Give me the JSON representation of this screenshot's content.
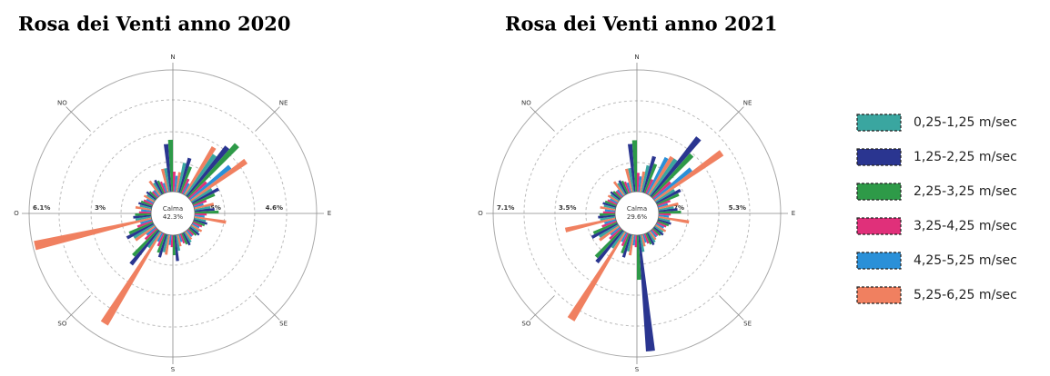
{
  "chart_data": [
    {
      "type": "windrose",
      "title": "Rosa dei Venti anno 2020",
      "categories": [
        "N",
        null,
        "NE",
        null,
        "E",
        null,
        "SE",
        null,
        "S",
        null,
        "SO",
        null,
        "O",
        null,
        "NO",
        null
      ],
      "calm": {
        "label": "Calma",
        "value": 42.3,
        "value_label": "42.3%"
      },
      "rlim": [
        0,
        6.1
      ],
      "rticks": [
        {
          "value": 1.5,
          "label": "1.5%"
        },
        {
          "value": 3,
          "label": "3%"
        },
        {
          "value": 4.6,
          "label": "4.6%"
        },
        {
          "value": 6.1,
          "label": "6.1%"
        }
      ],
      "series": [
        {
          "name": "0,25-1,25 m/sec",
          "color": "#3aa6a0",
          "values": [
            1.2,
            1.5,
            2.5,
            1.2,
            0.8,
            0.6,
            0.5,
            0.6,
            0.8,
            0.9,
            1.0,
            1.2,
            0.8,
            0.6,
            0.5,
            0.7
          ]
        },
        {
          "name": "1,25-2,25 m/sec",
          "color": "#2a3590",
          "values": [
            2.4,
            1.8,
            3.2,
            1.5,
            1.0,
            0.7,
            0.6,
            0.7,
            1.3,
            1.2,
            2.2,
            1.5,
            0.9,
            0.7,
            0.6,
            0.8
          ]
        },
        {
          "name": "2,25-3,25 m/sec",
          "color": "#2e9a48",
          "values": [
            2.6,
            1.4,
            3.6,
            1.2,
            1.2,
            0.6,
            0.5,
            0.6,
            1.0,
            1.0,
            1.8,
            1.3,
            0.8,
            0.6,
            0.5,
            0.7
          ]
        },
        {
          "name": "3,25-4,25 m/sec",
          "color": "#e0307a",
          "values": [
            1.0,
            0.8,
            1.2,
            0.7,
            0.6,
            0.5,
            0.4,
            0.5,
            0.6,
            0.7,
            0.8,
            0.8,
            0.6,
            0.5,
            0.4,
            0.6
          ]
        },
        {
          "name": "4,25-5,25 m/sec",
          "color": "#2a90d8",
          "values": [
            0.8,
            0.6,
            2.6,
            0.5,
            0.5,
            0.4,
            0.4,
            0.4,
            0.5,
            0.5,
            0.6,
            0.6,
            0.5,
            0.4,
            0.4,
            0.5
          ]
        },
        {
          "name": "5,25-6,25 m/sec",
          "color": "#f08060",
          "values": [
            1.0,
            2.8,
            3.4,
            1.0,
            1.6,
            0.6,
            0.5,
            0.6,
            1.0,
            5.4,
            1.2,
            6.0,
            0.8,
            0.6,
            0.9,
            1.2
          ]
        }
      ]
    },
    {
      "type": "windrose",
      "title": "Rosa dei Venti anno 2021",
      "categories": [
        "N",
        null,
        "NE",
        null,
        "E",
        null,
        "SE",
        null,
        "S",
        null,
        "SO",
        null,
        "O",
        null,
        "NO",
        null
      ],
      "calm": {
        "label": "Calma",
        "value": 29.6,
        "value_label": "29.6%"
      },
      "rlim": [
        0,
        7.1
      ],
      "rticks": [
        {
          "value": 1.7,
          "label": "1.7%"
        },
        {
          "value": 3.5,
          "label": "3.5%"
        },
        {
          "value": 5.3,
          "label": "5.3%"
        },
        {
          "value": 7.1,
          "label": "7.1%"
        }
      ],
      "series": [
        {
          "values": [
            1.4,
            1.6,
            2.6,
            1.3,
            0.9,
            0.7,
            0.6,
            0.7,
            1.0,
            1.0,
            1.2,
            1.3,
            0.9,
            0.7,
            0.6,
            0.8
          ]
        },
        {
          "values": [
            2.8,
            2.2,
            4.4,
            1.6,
            1.1,
            0.8,
            0.7,
            0.8,
            6.8,
            1.4,
            2.4,
            1.7,
            1.0,
            0.8,
            0.7,
            0.9
          ]
        },
        {
          "values": [
            3.0,
            1.8,
            3.4,
            1.4,
            1.3,
            0.7,
            0.6,
            0.7,
            2.6,
            1.2,
            2.2,
            1.5,
            0.9,
            0.7,
            0.6,
            0.8
          ]
        },
        {
          "values": [
            1.1,
            0.9,
            1.4,
            0.8,
            0.7,
            0.6,
            0.5,
            0.6,
            0.7,
            0.8,
            0.9,
            0.9,
            0.7,
            0.6,
            0.5,
            0.7
          ]
        },
        {
          "values": [
            0.9,
            2.4,
            2.8,
            0.6,
            0.6,
            0.5,
            0.5,
            0.5,
            0.6,
            0.6,
            0.7,
            0.7,
            0.6,
            0.5,
            0.5,
            0.6
          ]
        },
        {
          "values": [
            1.2,
            2.6,
            4.8,
            1.2,
            1.8,
            0.7,
            0.6,
            0.7,
            1.2,
            6.0,
            1.4,
            3.0,
            0.9,
            0.7,
            1.0,
            1.4
          ]
        }
      ]
    }
  ]
}
